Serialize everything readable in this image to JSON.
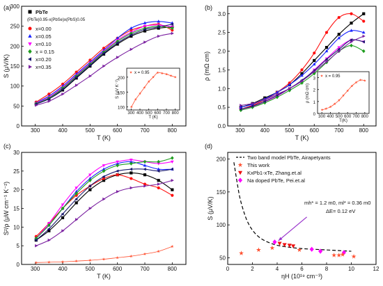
{
  "figure": {
    "background": "#ffffff"
  },
  "chart_data": [
    {
      "panel": "(a)",
      "type": "line",
      "xlabel": "T (K)",
      "ylabel": "S (μV/K)",
      "xlim": [
        250,
        850
      ],
      "ylim": [
        0,
        300
      ],
      "xticks": [
        300,
        400,
        500,
        600,
        700,
        800
      ],
      "yticks": [
        0,
        50,
        100,
        150,
        200,
        250,
        300
      ],
      "legend_position": "top-left",
      "legend_title": "PbTe",
      "legend_subtitle": "(PbTe)0.95-x(PbSe)x(PbS)0.05",
      "series": [
        {
          "name": "x=0.00",
          "color": "#ff1010",
          "marker": "circle",
          "x": [
            303,
            350,
            400,
            450,
            500,
            550,
            600,
            650,
            700,
            750,
            800
          ],
          "y": [
            60,
            80,
            105,
            135,
            165,
            195,
            220,
            240,
            250,
            255,
            240
          ]
        },
        {
          "name": "x=0.05",
          "color": "#1a24ff",
          "marker": "triangle-up",
          "x": [
            303,
            350,
            400,
            450,
            500,
            550,
            600,
            650,
            700,
            750,
            800
          ],
          "y": [
            58,
            75,
            100,
            130,
            160,
            190,
            220,
            245,
            258,
            262,
            258
          ]
        },
        {
          "name": "x=0.10",
          "color": "#ff00ff",
          "marker": "triangle-down",
          "x": [
            303,
            350,
            400,
            450,
            500,
            550,
            600,
            650,
            700,
            750,
            800
          ],
          "y": [
            57,
            72,
            97,
            127,
            157,
            187,
            215,
            235,
            250,
            253,
            248
          ]
        },
        {
          "name": "x = 0.15",
          "color": "#1f9d1f",
          "marker": "diamond",
          "x": [
            303,
            350,
            400,
            450,
            500,
            550,
            600,
            650,
            700,
            750,
            800
          ],
          "y": [
            56,
            70,
            95,
            125,
            155,
            185,
            212,
            232,
            245,
            250,
            245
          ]
        },
        {
          "name": "x=0.20",
          "color": "#1a1a6e",
          "marker": "triangle-left",
          "x": [
            303,
            350,
            400,
            450,
            500,
            550,
            600,
            650,
            700,
            750,
            800
          ],
          "y": [
            55,
            68,
            92,
            122,
            152,
            182,
            208,
            228,
            242,
            248,
            255
          ]
        },
        {
          "name": "x=0.35",
          "color": "#7a1fa0",
          "marker": "triangle-right",
          "x": [
            303,
            350,
            400,
            450,
            500,
            550,
            600,
            650,
            700,
            750,
            800
          ],
          "y": [
            52,
            62,
            80,
            102,
            125,
            150,
            172,
            192,
            210,
            225,
            232
          ]
        }
      ],
      "black_series": {
        "name": "PbTe",
        "color": "#000000",
        "marker": "square",
        "x": [
          303,
          350,
          400,
          450,
          500,
          550,
          600,
          650,
          700,
          750,
          800
        ],
        "y": [
          55,
          68,
          90,
          120,
          150,
          180,
          205,
          225,
          238,
          245,
          248
        ]
      },
      "inset": {
        "legend": "x = 0.95",
        "ylabel": "S (μV K⁻¹)",
        "xlabel": "T (K)",
        "xlim": [
          250,
          850
        ],
        "ylim": [
          90,
          230
        ],
        "xticks": [
          300,
          400,
          500,
          600,
          700,
          800
        ],
        "yticks": [
          100,
          150,
          200
        ],
        "x": [
          303,
          350,
          400,
          450,
          500,
          550,
          600,
          650,
          700,
          750,
          800
        ],
        "y": [
          100,
          125,
          145,
          165,
          185,
          200,
          215,
          213,
          210,
          205,
          200
        ],
        "color": "#ff5030"
      }
    },
    {
      "panel": "(b)",
      "type": "line",
      "xlabel": "T (K)",
      "ylabel": "ρ (mΩ cm)",
      "xlim": [
        250,
        850
      ],
      "ylim": [
        0,
        3.2
      ],
      "xticks": [
        300,
        400,
        500,
        600,
        700,
        800
      ],
      "yticks": [
        0.0,
        0.5,
        1.0,
        1.5,
        2.0,
        2.5,
        3.0
      ],
      "ytick_labels": [
        "0.0",
        "0.5",
        "1.0",
        "1.5",
        "2.0",
        "2.5",
        "3.0"
      ],
      "series": [
        {
          "name": "PbTe",
          "color": "#000000",
          "marker": "square",
          "x": [
            303,
            350,
            400,
            450,
            500,
            550,
            600,
            650,
            700,
            750,
            800
          ],
          "y": [
            0.5,
            0.6,
            0.75,
            0.9,
            1.1,
            1.4,
            1.75,
            2.1,
            2.45,
            2.75,
            3.0
          ]
        },
        {
          "name": "x=0.00",
          "color": "#ff1010",
          "marker": "circle",
          "x": [
            303,
            350,
            400,
            450,
            500,
            550,
            600,
            650,
            700,
            750,
            800
          ],
          "y": [
            0.45,
            0.55,
            0.7,
            0.9,
            1.15,
            1.5,
            1.95,
            2.5,
            2.9,
            3.0,
            2.8
          ]
        },
        {
          "name": "x=0.05",
          "color": "#1a24ff",
          "marker": "triangle-up",
          "x": [
            303,
            350,
            400,
            450,
            500,
            550,
            600,
            650,
            700,
            750,
            800
          ],
          "y": [
            0.5,
            0.58,
            0.72,
            0.9,
            1.1,
            1.35,
            1.65,
            2.0,
            2.35,
            2.55,
            2.5
          ]
        },
        {
          "name": "x=0.10",
          "color": "#ff00ff",
          "marker": "triangle-down",
          "x": [
            303,
            350,
            400,
            450,
            500,
            550,
            600,
            650,
            700,
            750,
            800
          ],
          "y": [
            0.45,
            0.52,
            0.65,
            0.8,
            1.0,
            1.2,
            1.5,
            1.8,
            2.1,
            2.3,
            2.25
          ]
        },
        {
          "name": "x = 0.15",
          "color": "#1f9d1f",
          "marker": "diamond",
          "x": [
            303,
            350,
            400,
            450,
            500,
            550,
            600,
            650,
            700,
            750,
            800
          ],
          "y": [
            0.42,
            0.5,
            0.62,
            0.77,
            0.95,
            1.15,
            1.4,
            1.7,
            2.0,
            2.15,
            2.0
          ]
        },
        {
          "name": "x=0.20",
          "color": "#1a1a6e",
          "marker": "triangle-left",
          "x": [
            303,
            350,
            400,
            450,
            500,
            550,
            600,
            650,
            700,
            750,
            800
          ],
          "y": [
            0.45,
            0.53,
            0.66,
            0.82,
            1.0,
            1.22,
            1.48,
            1.78,
            2.05,
            2.3,
            2.25
          ]
        },
        {
          "name": "x=0.35",
          "color": "#7a1fa0",
          "marker": "triangle-right",
          "x": [
            303,
            350,
            400,
            450,
            500,
            550,
            600,
            650,
            700,
            750,
            800
          ],
          "y": [
            0.55,
            0.6,
            0.7,
            0.85,
            1.0,
            1.2,
            1.45,
            1.72,
            2.0,
            2.25,
            2.4
          ]
        }
      ],
      "inset": {
        "legend": "x = 0.95",
        "ylabel": "ρ (mΩ cm)",
        "xlabel": "T(K)",
        "xlim": [
          250,
          850
        ],
        "ylim": [
          0,
          3.5
        ],
        "xticks": [
          300,
          400,
          500,
          600,
          700,
          800
        ],
        "yticks": [
          0,
          1,
          2,
          3
        ],
        "x": [
          303,
          350,
          400,
          450,
          500,
          550,
          600,
          650,
          700,
          750,
          800
        ],
        "y": [
          0.3,
          0.4,
          0.55,
          0.8,
          1.1,
          1.5,
          1.9,
          2.3,
          2.6,
          2.8,
          2.75
        ],
        "color": "#ff5030"
      }
    },
    {
      "panel": "(c)",
      "type": "line",
      "xlabel": "T (K)",
      "ylabel": "S²/ρ (μW cm⁻¹ K⁻²)",
      "xlim": [
        250,
        850
      ],
      "ylim": [
        0,
        30
      ],
      "xticks": [
        300,
        400,
        500,
        600,
        700,
        800
      ],
      "yticks": [
        0,
        5,
        10,
        15,
        20,
        25,
        30
      ],
      "series": [
        {
          "name": "PbTe",
          "color": "#000000",
          "marker": "square",
          "x": [
            303,
            350,
            400,
            450,
            500,
            550,
            600,
            650,
            700,
            750,
            800
          ],
          "y": [
            6.5,
            9,
            12.5,
            16.5,
            20,
            22.5,
            24,
            24.5,
            24,
            22.5,
            20
          ]
        },
        {
          "name": "x=0.00",
          "color": "#ff1010",
          "marker": "circle",
          "x": [
            303,
            350,
            400,
            450,
            500,
            550,
            600,
            650,
            700,
            750,
            800
          ],
          "y": [
            7.5,
            11,
            15,
            18.5,
            21,
            23,
            24,
            23,
            21.5,
            20.5,
            18.5
          ]
        },
        {
          "name": "x=0.05",
          "color": "#1a24ff",
          "marker": "triangle-up",
          "x": [
            303,
            350,
            400,
            450,
            500,
            550,
            600,
            650,
            700,
            750,
            800
          ],
          "y": [
            7,
            10.5,
            15,
            19.5,
            23,
            25.5,
            27,
            27.5,
            26.5,
            25.5,
            25.5
          ]
        },
        {
          "name": "x=0.10",
          "color": "#ff00ff",
          "marker": "triangle-down",
          "x": [
            303,
            350,
            400,
            450,
            500,
            550,
            600,
            650,
            700,
            750,
            800
          ],
          "y": [
            7,
            11,
            16,
            20.5,
            24,
            26.5,
            27.5,
            28,
            27.5,
            27,
            27.5
          ]
        },
        {
          "name": "x = 0.15",
          "color": "#1f9d1f",
          "marker": "diamond",
          "x": [
            303,
            350,
            400,
            450,
            500,
            550,
            600,
            650,
            700,
            750,
            800
          ],
          "y": [
            7,
            10.5,
            15,
            19,
            22.5,
            25,
            26.5,
            27,
            27.5,
            27.5,
            28.5
          ]
        },
        {
          "name": "x=0.20",
          "color": "#1a1a6e",
          "marker": "triangle-left",
          "x": [
            303,
            350,
            400,
            450,
            500,
            550,
            600,
            650,
            700,
            750,
            800
          ],
          "y": [
            6.5,
            9.5,
            13.5,
            17.5,
            21,
            23.5,
            25,
            25.5,
            25.5,
            25,
            25.5
          ]
        },
        {
          "name": "x=0.35",
          "color": "#7a1fa0",
          "marker": "triangle-right",
          "x": [
            303,
            350,
            400,
            450,
            500,
            550,
            600,
            650,
            700,
            750,
            800
          ],
          "y": [
            5,
            6.5,
            9,
            12,
            15,
            17.5,
            19.5,
            20.5,
            21,
            21.5,
            22.5
          ]
        },
        {
          "name": "x = 0.95",
          "color": "#ff5030",
          "marker": "star",
          "x": [
            303,
            350,
            400,
            450,
            500,
            550,
            600,
            650,
            700,
            750,
            800
          ],
          "y": [
            0.5,
            0.6,
            0.7,
            0.9,
            1.1,
            1.4,
            1.8,
            2.2,
            2.8,
            3.5,
            4.8
          ]
        }
      ]
    },
    {
      "panel": "(d)",
      "type": "scatter",
      "xlabel": "ηH (10¹⁹ cm⁻³)",
      "ylabel": "S (μV/K)",
      "xlim": [
        0,
        12
      ],
      "ylim": [
        40,
        210
      ],
      "xticks": [
        0,
        2,
        4,
        6,
        8,
        10,
        12
      ],
      "yticks": [
        50,
        100,
        150,
        200
      ],
      "legend_position": "top-right",
      "legend": [
        "Two band model PbTe, Airapetyants",
        "This work",
        "KxPb1-xTe, Zhang.et.al",
        "Na doped PbTe, Pei.et.al"
      ],
      "annotation": [
        "mh* = 1.2 m0, ml* = 0.36 m0",
        "ΔE= 0.12 eV"
      ],
      "model_curve": {
        "x": [
          0.5,
          0.8,
          1.0,
          1.3,
          1.6,
          2.0,
          2.5,
          3.0,
          3.5,
          4.0,
          5.0,
          6.0,
          7.0,
          8.0,
          9.0,
          10.0
        ],
        "y": [
          195,
          160,
          140,
          120,
          105,
          92,
          82,
          76,
          72,
          69,
          66,
          64,
          63,
          62,
          61,
          60
        ]
      },
      "this_work": {
        "color": "#ff5030",
        "x": [
          1.1,
          2.5,
          3.6,
          5.8,
          8.6,
          9.0,
          9.3,
          10.2
        ],
        "y": [
          57,
          62,
          65,
          62,
          54,
          54,
          55,
          52
        ]
      },
      "zhang": {
        "color": "#ee1010",
        "x": [
          4.2,
          4.6,
          5.0,
          5.3
        ],
        "y": [
          72,
          70,
          69,
          68
        ]
      },
      "pei": {
        "color": "#ff00ff",
        "x": [
          3.8,
          6.8,
          7.5,
          9.4
        ],
        "y": [
          74,
          63,
          60,
          58
        ]
      },
      "arrow": {
        "from": [
          6.4,
          112
        ],
        "to": [
          4.1,
          76
        ],
        "color": "#9933cc"
      }
    }
  ]
}
